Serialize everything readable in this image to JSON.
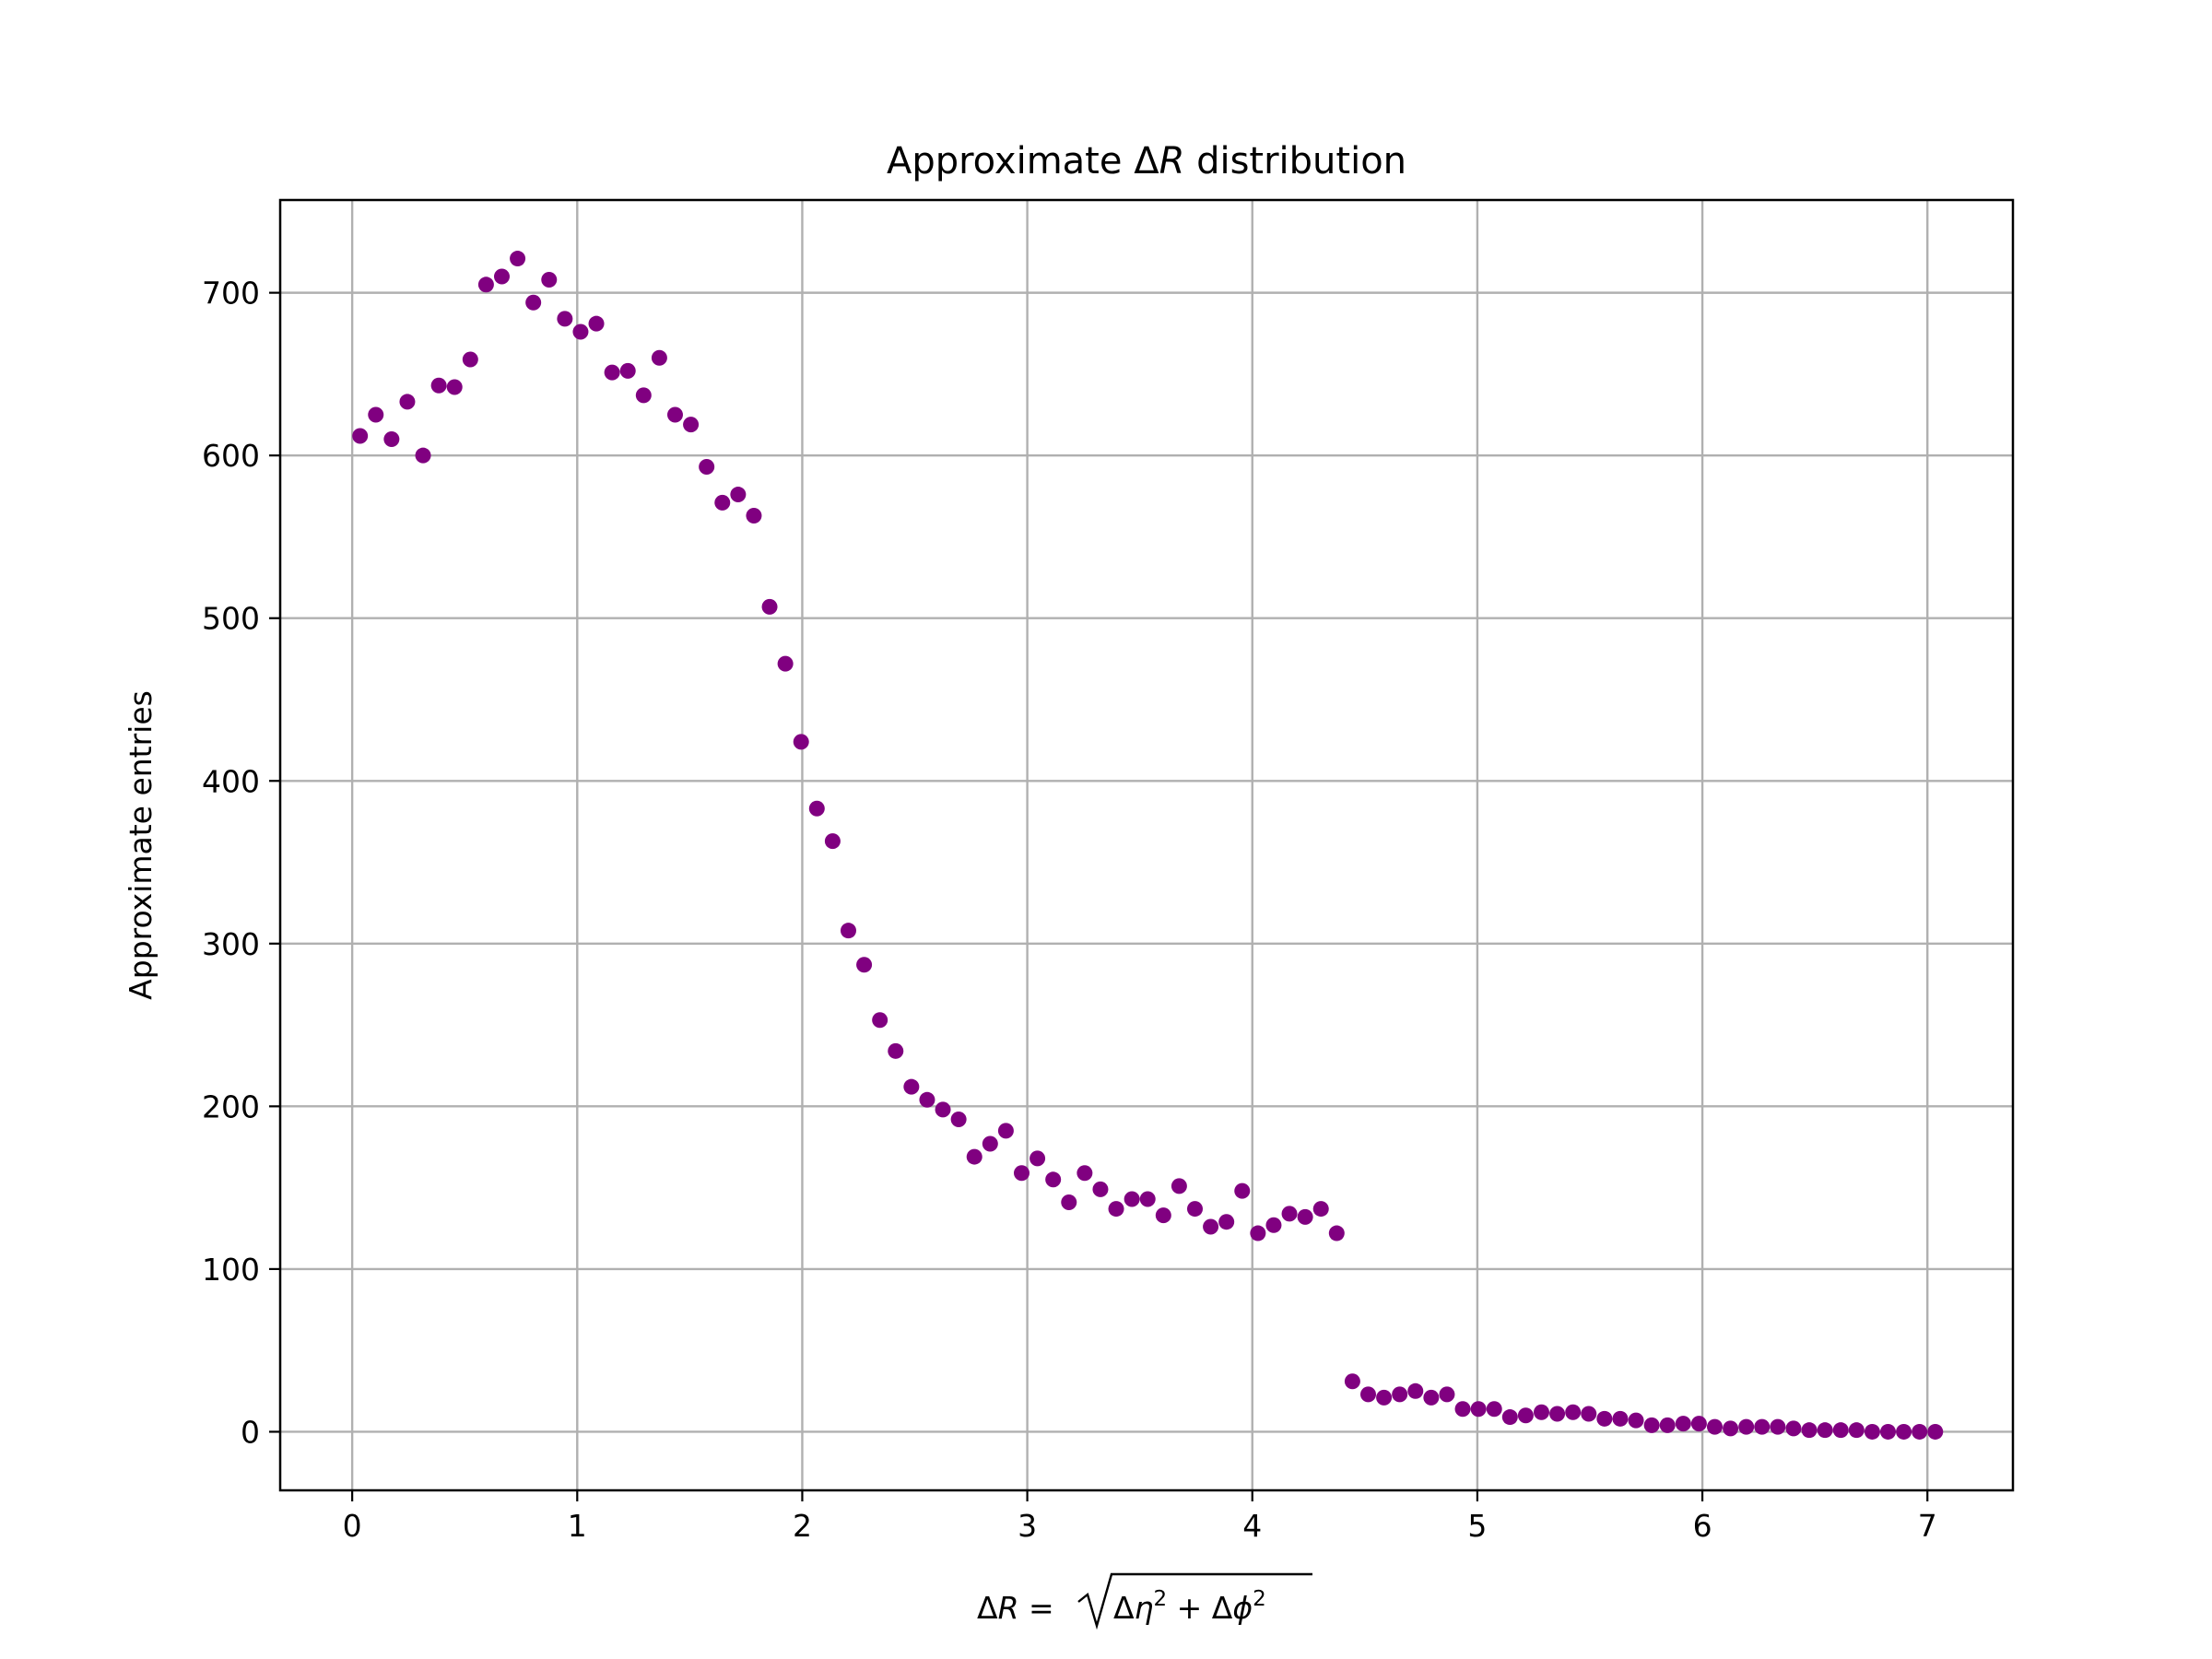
{
  "chart_data": {
    "type": "scatter",
    "title_prefix": "Approximate Δ",
    "title_var": "R",
    "title_suffix": " distribution",
    "ylabel": "Approximate entries",
    "xlabel_parts": {
      "delta": "Δ",
      "r": "R",
      "eq": " = ",
      "eta_delta": "Δ",
      "eta": "η",
      "sq1": "2",
      "plus": " + ",
      "phi_delta": "Δ",
      "phi": "ϕ",
      "sq2": "2"
    },
    "xlim": [
      -0.32,
      7.38
    ],
    "ylim": [
      -36,
      757
    ],
    "xticks": [
      0,
      1,
      2,
      3,
      4,
      5,
      6,
      7
    ],
    "xtick_labels": [
      "0",
      "1",
      "2",
      "3",
      "4",
      "5",
      "6",
      "7"
    ],
    "yticks": [
      0,
      100,
      200,
      300,
      400,
      500,
      600,
      700
    ],
    "ytick_labels": [
      "0",
      "100",
      "200",
      "300",
      "400",
      "500",
      "600",
      "700"
    ],
    "grid": true,
    "marker_color": "#800080",
    "grid_color": "#b0b0b0",
    "series": [
      {
        "x": [
          0.035,
          0.105,
          0.175,
          0.245,
          0.315,
          0.385,
          0.455,
          0.525,
          0.595,
          0.665,
          0.735,
          0.805,
          0.875,
          0.945,
          1.015,
          1.085,
          1.155,
          1.225,
          1.295,
          1.365,
          1.435,
          1.505,
          1.575,
          1.645,
          1.715,
          1.785,
          1.855,
          1.925,
          1.995,
          2.065,
          2.135,
          2.205,
          2.275,
          2.345,
          2.415,
          2.485,
          2.555,
          2.625,
          2.695,
          2.765,
          2.835,
          2.905,
          2.975,
          3.045,
          3.115,
          3.185,
          3.255,
          3.325,
          3.395,
          3.465,
          3.535,
          3.605,
          3.675,
          3.745,
          3.815,
          3.885,
          3.955,
          4.025,
          4.095,
          4.165,
          4.235,
          4.305,
          4.375,
          4.445,
          4.515,
          4.585,
          4.655,
          4.725,
          4.795,
          4.865,
          4.935,
          5.005,
          5.075,
          5.145,
          5.215,
          5.285,
          5.355,
          5.425,
          5.495,
          5.565,
          5.635,
          5.705,
          5.775,
          5.845,
          5.915,
          5.985,
          6.055,
          6.125,
          6.195,
          6.265,
          6.335,
          6.405,
          6.475,
          6.545,
          6.615,
          6.685,
          6.755,
          6.825,
          6.895,
          6.965,
          7.035
        ],
        "y": [
          612,
          625,
          610,
          633,
          600,
          643,
          642,
          659,
          705,
          710,
          721,
          694,
          708,
          684,
          676,
          681,
          651,
          652,
          637,
          660,
          625,
          619,
          593,
          571,
          576,
          563,
          507,
          472,
          424,
          383,
          363,
          308,
          287,
          253,
          234,
          212,
          204,
          198,
          192,
          169,
          177,
          185,
          159,
          168,
          155,
          141,
          159,
          149,
          137,
          143,
          143,
          133,
          151,
          137,
          126,
          129,
          148,
          122,
          127,
          134,
          132,
          137,
          122,
          31,
          23,
          21,
          23,
          25,
          21,
          23,
          14,
          14,
          14,
          9,
          10,
          12,
          11,
          12,
          11,
          8,
          8,
          7,
          4,
          4,
          5,
          5,
          3,
          2,
          3,
          3,
          3,
          2,
          1,
          1,
          1,
          1,
          0,
          0,
          0,
          0,
          0
        ]
      }
    ]
  }
}
